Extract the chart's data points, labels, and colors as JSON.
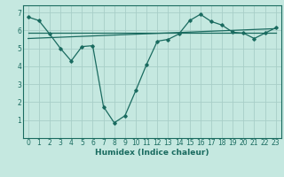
{
  "xlabel": "Humidex (Indice chaleur)",
  "background_color": "#c5e8e0",
  "grid_color": "#a8cec8",
  "line_color": "#1a6b60",
  "xlim": [
    -0.5,
    23.5
  ],
  "ylim": [
    0,
    7.4
  ],
  "xticks": [
    0,
    1,
    2,
    3,
    4,
    5,
    6,
    7,
    8,
    9,
    10,
    11,
    12,
    13,
    14,
    15,
    16,
    17,
    18,
    19,
    20,
    21,
    22,
    23
  ],
  "yticks": [
    1,
    2,
    3,
    4,
    5,
    6,
    7
  ],
  "series1_x": [
    0,
    1,
    2,
    3,
    4,
    5,
    6,
    7,
    8,
    9,
    10,
    11,
    12,
    13,
    14,
    15,
    16,
    17,
    18,
    19,
    20,
    21,
    22,
    23
  ],
  "series1_y": [
    6.75,
    6.55,
    5.8,
    5.0,
    4.3,
    5.1,
    5.15,
    1.75,
    0.85,
    1.25,
    2.65,
    4.1,
    5.4,
    5.5,
    5.8,
    6.55,
    6.9,
    6.5,
    6.3,
    5.9,
    5.85,
    5.55,
    5.85,
    6.15
  ],
  "series2_x": [
    0,
    23
  ],
  "series2_y": [
    5.85,
    5.85
  ],
  "series3_x": [
    0,
    23
  ],
  "series3_y": [
    5.55,
    6.1
  ]
}
